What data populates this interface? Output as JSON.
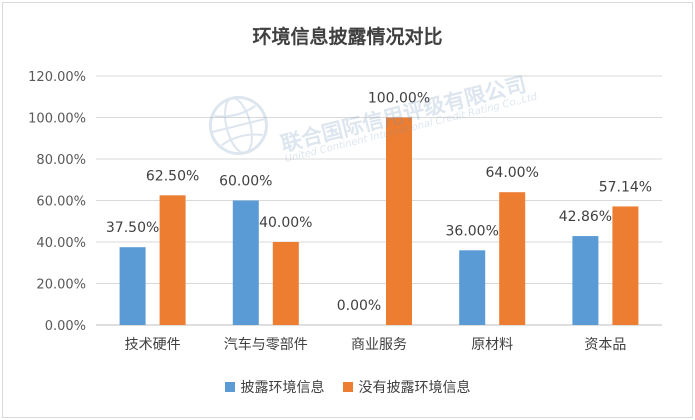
{
  "chart_data": {
    "type": "bar",
    "title": "环境信息披露情况对比",
    "categories": [
      "技术硬件",
      "汽车与零部件",
      "商业服务",
      "原材料",
      "资本品"
    ],
    "series": [
      {
        "name": "披露环境信息",
        "color": "#5b9bd5",
        "values": [
          37.5,
          60.0,
          0.0,
          36.0,
          42.86
        ],
        "labels": [
          "37.50%",
          "60.00%",
          "0.00%",
          "36.00%",
          "42.86%"
        ]
      },
      {
        "name": "没有披露环境信息",
        "color": "#ed7d31",
        "values": [
          62.5,
          40.0,
          100.0,
          64.0,
          57.14
        ],
        "labels": [
          "62.50%",
          "40.00%",
          "100.00%",
          "64.00%",
          "57.14%"
        ]
      }
    ],
    "yticks": [
      "0.00%",
      "20.00%",
      "40.00%",
      "60.00%",
      "80.00%",
      "100.00%",
      "120.00%"
    ],
    "ylim": [
      0,
      120
    ],
    "grid": true,
    "legend_position": "bottom"
  },
  "watermark": {
    "name": "联合国际信用评级有限公司",
    "english": "United Continent International Credit Rating Co.,Ltd"
  }
}
